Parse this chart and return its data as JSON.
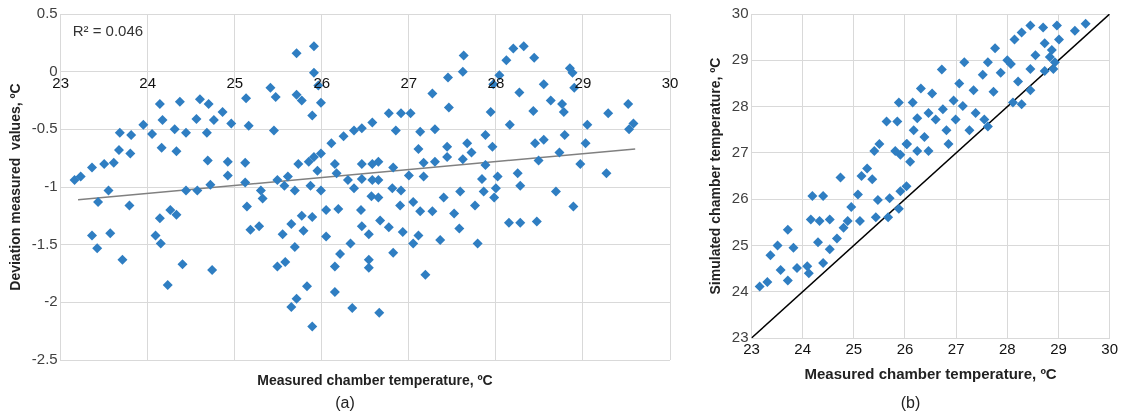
{
  "chart_data": [
    {
      "type": "scatter",
      "xlabel": "Measured chamber temperature, ºC",
      "ylabel": "Deviation measured  values, ºC",
      "annotations": [
        "R² = 0.046",
        "(a)"
      ],
      "xlim": [
        23,
        30
      ],
      "xticks": [
        23,
        24,
        25,
        26,
        27,
        28,
        29,
        30
      ],
      "ylim": [
        -2.5,
        0.5
      ],
      "yticks": [
        -2.5,
        -2,
        -1.5,
        -1,
        -0.5,
        0,
        0.5
      ],
      "grid": true,
      "series": [
        {
          "marker": "diamond",
          "color": "#2f7ec2",
          "x": [
            23.16,
            23.23,
            23.36,
            23.5,
            23.61,
            23.67,
            23.68,
            23.81,
            23.95,
            24.05,
            23.8,
            23.55,
            23.43,
            23.79,
            23.36,
            23.42,
            23.57,
            23.71,
            24.14,
            24.17,
            24.16,
            24.31,
            24.33,
            24.37,
            24.44,
            24.56,
            24.6,
            24.7,
            24.76,
            24.68,
            24.69,
            24.72,
            24.86,
            24.96,
            24.92,
            24.92,
            24.44,
            24.57,
            24.14,
            24.26,
            24.33,
            24.09,
            24.15,
            24.4,
            24.23,
            24.74,
            25.13,
            25.16,
            25.12,
            25.12,
            25.14,
            25.18,
            25.28,
            25.3,
            25.32,
            25.41,
            25.47,
            25.45,
            25.49,
            25.57,
            25.61,
            25.69,
            25.71,
            25.71,
            25.77,
            25.91,
            25.91,
            25.96,
            25.99,
            25.89,
            25.73,
            25.85,
            25.91,
            25.99,
            25.95,
            25.87,
            25.99,
            25.77,
            25.89,
            25.65,
            25.55,
            25.79,
            25.69,
            25.49,
            25.58,
            25.71,
            25.65,
            25.83,
            25.89,
            26.05,
            26.19,
            26.05,
            26.15,
            26.15,
            26.21,
            26.33,
            26.35,
            26.11,
            26.25,
            26.37,
            26.15,
            26.17,
            26.3,
            26.37,
            26.46,
            26.58,
            26.46,
            26.58,
            26.46,
            26.58,
            26.45,
            26.57,
            26.46,
            26.54,
            26.54,
            26.54,
            26.66,
            26.77,
            26.91,
            27.02,
            26.85,
            27.27,
            27.45,
            27.63,
            27.62,
            27.46,
            27.13,
            27.3,
            27.11,
            27.17,
            27.3,
            27.44,
            27.44,
            27.62,
            27.67,
            27.72,
            27.88,
            27.94,
            27.97,
            28.04,
            28.12,
            28.2,
            28.32,
            28.44,
            28.55,
            28.27,
            28.43,
            28.16,
            27.96,
            27.88,
            27.84,
            28.02,
            28.0,
            27.86,
            27.98,
            28.25,
            28.28,
            28.45,
            28.55,
            28.49,
            28.63,
            28.76,
            28.78,
            28.85,
            28.88,
            28.9,
            28.79,
            28.73,
            28.69,
            28.89,
            28.15,
            28.28,
            28.47,
            29.03,
            29.05,
            28.97,
            29.29,
            29.27,
            29.52,
            29.53,
            29.58,
            27.76,
            27.59,
            27.4,
            27.52,
            27.58,
            27.36,
            27.79,
            27.11,
            27.05,
            26.82,
            27.19,
            27.17,
            27.0,
            26.82,
            26.91,
            26.81,
            27.05,
            27.13,
            27.27,
            26.9,
            26.93,
            26.77,
            26.67,
            26.65,
            26.65,
            26.65
          ],
          "values": [
            -0.94,
            -0.91,
            -0.83,
            -0.8,
            -0.79,
            -0.68,
            -0.53,
            -0.55,
            -0.46,
            -0.54,
            -0.71,
            -1.03,
            -1.13,
            -1.16,
            -1.42,
            -1.53,
            -1.4,
            -1.63,
            -0.28,
            -0.42,
            -0.66,
            -0.5,
            -0.69,
            -0.26,
            -0.53,
            -0.41,
            -0.24,
            -0.28,
            -0.42,
            -0.53,
            -0.77,
            -0.98,
            -0.35,
            -0.45,
            -0.78,
            -0.9,
            -1.03,
            -1.03,
            -1.27,
            -1.2,
            -1.24,
            -1.42,
            -1.49,
            -1.67,
            -1.85,
            -1.72,
            -0.23,
            -0.47,
            -0.79,
            -0.96,
            -1.17,
            -1.37,
            -1.34,
            -1.03,
            -1.1,
            -0.14,
            -0.22,
            -0.51,
            -0.94,
            -0.99,
            -0.91,
            -1.03,
            0.16,
            -0.2,
            -0.25,
            0.22,
            -0.01,
            -0.12,
            -0.27,
            -0.38,
            -0.8,
            -0.78,
            -0.74,
            -0.71,
            -0.86,
            -0.99,
            -1.03,
            -1.25,
            -1.26,
            -1.32,
            -1.41,
            -1.38,
            -1.52,
            -1.69,
            -1.65,
            -1.97,
            -2.04,
            -1.86,
            -2.21,
            -1.2,
            -1.19,
            -1.43,
            -1.69,
            -1.91,
            -1.58,
            -1.49,
            -2.05,
            -0.62,
            -0.56,
            -0.51,
            -0.8,
            -0.88,
            -0.94,
            -1.01,
            -0.49,
            -0.44,
            -0.8,
            -0.8,
            -0.93,
            -0.94,
            -1.2,
            -1.08,
            -1.34,
            -1.41,
            -1.63,
            -1.7,
            -2.09,
            -0.36,
            -0.36,
            -0.36,
            -0.51,
            -0.19,
            -0.05,
            0.14,
            0.0,
            -0.31,
            -0.52,
            -0.5,
            -0.67,
            -0.79,
            -0.78,
            -0.65,
            -0.74,
            -0.76,
            -0.62,
            -0.7,
            -0.55,
            -0.35,
            -0.11,
            -0.03,
            0.1,
            0.2,
            0.22,
            0.12,
            -0.11,
            -0.18,
            -0.34,
            -0.46,
            -0.65,
            -0.81,
            -0.93,
            -0.91,
            -1.01,
            -1.04,
            -1.09,
            -0.88,
            -0.99,
            -0.62,
            -0.59,
            -0.77,
            -0.25,
            -0.28,
            -0.35,
            0.03,
            -0.01,
            -0.14,
            -0.55,
            -0.7,
            -1.04,
            -1.17,
            -1.31,
            -1.31,
            -1.3,
            -0.62,
            -0.46,
            -0.8,
            -0.36,
            -0.88,
            -0.28,
            -0.5,
            -0.45,
            -1.16,
            -1.04,
            -1.09,
            -1.23,
            -1.36,
            -1.46,
            -1.49,
            -1.42,
            -1.49,
            -1.57,
            -1.76,
            -0.91,
            -0.9,
            -0.83,
            -1.03,
            -1.01,
            -1.13,
            -1.21,
            -1.21,
            -1.16,
            -1.39,
            -1.35,
            -1.29,
            -1.09,
            -0.94,
            -0.78
          ]
        },
        {
          "type": "line",
          "marker": "none",
          "color": "#808080",
          "x": [
            23.2,
            29.6
          ],
          "values": [
            -1.11,
            -0.67
          ]
        }
      ]
    },
    {
      "type": "scatter",
      "xlabel": "Measured chamber temperature, ºC",
      "ylabel": "Simulated chamber temperature, ºC",
      "annotations": [
        "(b)"
      ],
      "xlim": [
        23,
        30
      ],
      "xticks": [
        23,
        24,
        25,
        26,
        27,
        28,
        29,
        30
      ],
      "ylim": [
        23,
        30
      ],
      "yticks": [
        23,
        24,
        25,
        26,
        27,
        28,
        29,
        30
      ],
      "grid": true,
      "series": [
        {
          "marker": "diamond",
          "color": "#2f7ec2",
          "x": [
            23.16,
            23.31,
            23.37,
            23.51,
            23.71,
            23.71,
            23.57,
            23.82,
            23.89,
            24.09,
            24.12,
            24.19,
            24.4,
            24.16,
            24.33,
            24.53,
            24.3,
            24.4,
            24.53,
            24.67,
            24.74,
            24.8,
            24.95,
            24.88,
            25.12,
            25.08,
            25.15,
            25.26,
            25.36,
            25.43,
            25.47,
            25.5,
            25.64,
            25.85,
            25.67,
            25.7,
            25.88,
            25.88,
            25.91,
            26.03,
            25.91,
            26.04,
            26.1,
            26.24,
            26.17,
            26.15,
            26.31,
            26.38,
            26.46,
            26.53,
            26.6,
            26.72,
            26.74,
            26.81,
            26.85,
            26.95,
            26.99,
            27.06,
            27.13,
            27.16,
            27.26,
            27.34,
            27.38,
            27.52,
            27.55,
            27.62,
            27.62,
            27.76,
            27.73,
            27.87,
            28.07,
            28.0,
            28.11,
            28.28,
            28.21,
            28.14,
            28.28,
            28.45,
            28.45,
            28.45,
            28.55,
            28.7,
            28.73,
            28.73,
            28.83,
            28.9,
            28.93,
            28.97,
            29.01,
            29.32,
            29.53,
            28.87,
            26.46,
            26.24,
            26.03,
            25.81,
            25.4
          ],
          "values": [
            24.11,
            24.21,
            24.79,
            25.0,
            25.34,
            24.24,
            24.47,
            24.95,
            24.51,
            24.55,
            24.4,
            26.07,
            26.07,
            25.56,
            25.53,
            25.56,
            25.07,
            24.62,
            24.92,
            25.15,
            26.47,
            25.38,
            25.83,
            25.53,
            25.53,
            26.1,
            26.5,
            26.66,
            26.43,
            25.61,
            25.98,
            27.19,
            27.68,
            27.68,
            25.61,
            26.02,
            25.79,
            28.09,
            26.17,
            26.28,
            26.96,
            27.19,
            26.81,
            27.04,
            27.49,
            28.09,
            28.39,
            27.34,
            27.04,
            28.28,
            27.72,
            28.8,
            27.94,
            27.49,
            27.19,
            28.13,
            27.72,
            28.5,
            28.01,
            28.96,
            27.49,
            28.35,
            27.86,
            28.69,
            27.72,
            27.57,
            28.96,
            29.26,
            28.32,
            28.73,
            28.92,
            29.0,
            28.09,
            28.05,
            28.54,
            29.45,
            29.6,
            28.35,
            29.75,
            28.81,
            29.11,
            29.71,
            29.37,
            28.77,
            29.07,
            28.81,
            28.96,
            29.75,
            29.45,
            29.64,
            29.79,
            29.22,
            27.86,
            27.75,
            27.19,
            27.04,
            27.04
          ]
        },
        {
          "type": "line",
          "marker": "none",
          "color": "#000000",
          "x": [
            23,
            30
          ],
          "values": [
            23,
            30
          ]
        }
      ]
    }
  ]
}
